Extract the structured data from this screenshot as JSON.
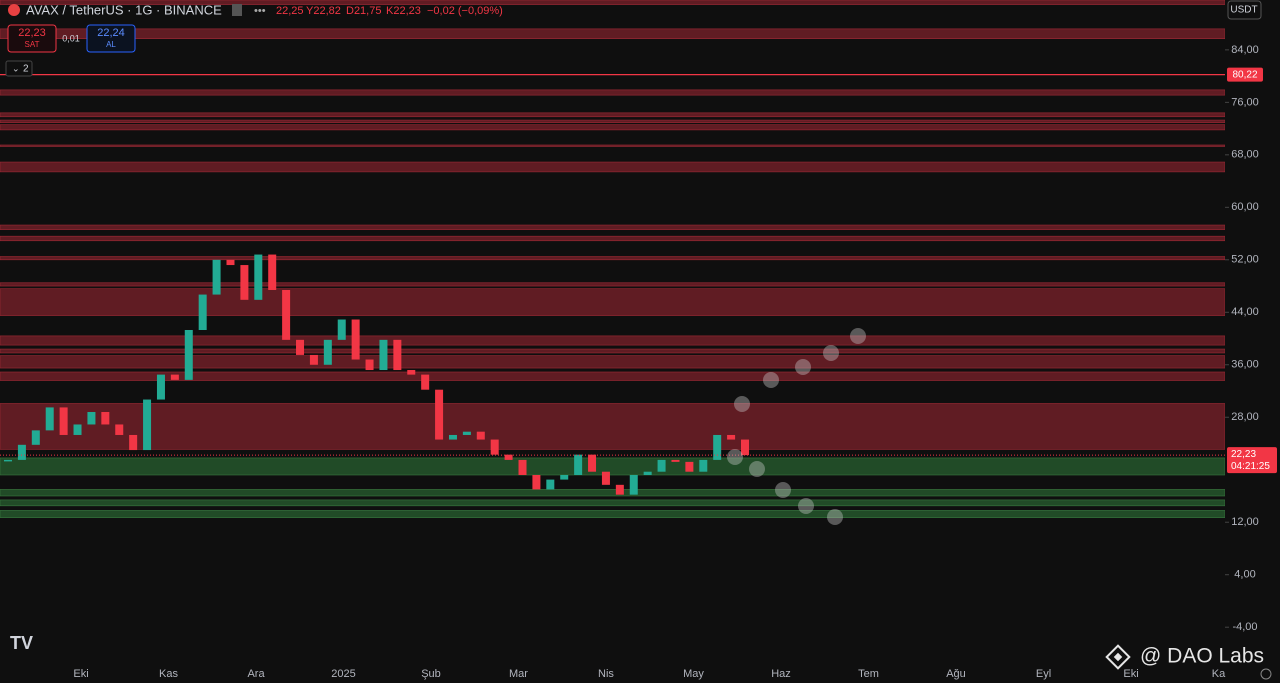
{
  "chart_data": {
    "type": "candlestick",
    "title": "AVAX / TetherUS · 1G · BINANCE",
    "ohlc_text": [
      "22,25",
      "Y22,82",
      "D21,75",
      "K22,23",
      "−0,02 (−0,09%)"
    ],
    "sell_price": "22,23",
    "sell_label": "SAT",
    "spread": "0,01",
    "buy_price": "22,24",
    "buy_label": "AL",
    "indicator_count": "2",
    "currency": "USDT",
    "countdown": "04:21:25",
    "watermark": "@ DAO Labs",
    "values": [
      21.5,
      23.8,
      26,
      29.5,
      25.3,
      26.9,
      28.8,
      26.9,
      25.3,
      23,
      30.7,
      34.5,
      33.7,
      41.3,
      46.7,
      52,
      51.2,
      45.9,
      52.8,
      47.4,
      39.8,
      37.5,
      36,
      39.8,
      42.9,
      36.8,
      35.2,
      39.8,
      35.2,
      34.5,
      32.2,
      24.6,
      25.3,
      25.8,
      24.6,
      22.3,
      21.5,
      19.2,
      17,
      18.5,
      19.2,
      22.3,
      19.7,
      17.7,
      16.2,
      19.2,
      19.7,
      21.5,
      21.2,
      19.7,
      21.5,
      25.3,
      24.6,
      22.23
    ],
    "up_color": "#22ab94",
    "down_color": "#f23645",
    "last_price": {
      "value": 22.23,
      "label": "22,23"
    },
    "alert_line": {
      "value": 80.22,
      "label": "80,22"
    },
    "resistance_color": "#6e1e27",
    "support_color": "#25562c",
    "resistance_zones": [
      [
        90.9,
        91.6
      ],
      [
        85.7,
        87.2
      ],
      [
        77.1,
        77.9
      ],
      [
        73.8,
        74.4
      ],
      [
        72.9,
        73.3
      ],
      [
        71.8,
        72.6
      ],
      [
        69.3,
        69.5
      ],
      [
        65.4,
        66.9
      ],
      [
        56.6,
        57.3
      ],
      [
        54.9,
        55.6
      ],
      [
        52,
        52.5
      ],
      [
        48,
        48.5
      ],
      [
        43.5,
        47.6
      ],
      [
        39,
        40.4
      ],
      [
        37.8,
        38.4
      ],
      [
        35.5,
        37.4
      ],
      [
        33.6,
        34.9
      ],
      [
        23.1,
        30.1
      ]
    ],
    "support_zones": [
      [
        19.2,
        21.8
      ],
      [
        16,
        17
      ],
      [
        14.5,
        15.4
      ],
      [
        12.7,
        13.8
      ]
    ],
    "x_labels": [
      "Eki",
      "Kas",
      "Ara",
      "2025",
      "Şub",
      "Mar",
      "Nis",
      "May",
      "Haz",
      "Tem",
      "Ağu",
      "Eyl",
      "Eki",
      "Ka"
    ],
    "ylim": [
      -9,
      91.6
    ],
    "yticks": [
      {
        "value": 84,
        "label": "84,00"
      },
      {
        "value": 76,
        "label": "76,00"
      },
      {
        "value": 68,
        "label": "68,00"
      },
      {
        "value": 60,
        "label": "60,00"
      },
      {
        "value": 52,
        "label": "52,00"
      },
      {
        "value": 44,
        "label": "44,00"
      },
      {
        "value": 36,
        "label": "36,00"
      },
      {
        "value": 28,
        "label": "28,00"
      },
      {
        "value": 12,
        "label": "12,00"
      },
      {
        "value": 4,
        "label": "4,00"
      },
      {
        "value": -4,
        "label": "-4,00"
      }
    ]
  }
}
